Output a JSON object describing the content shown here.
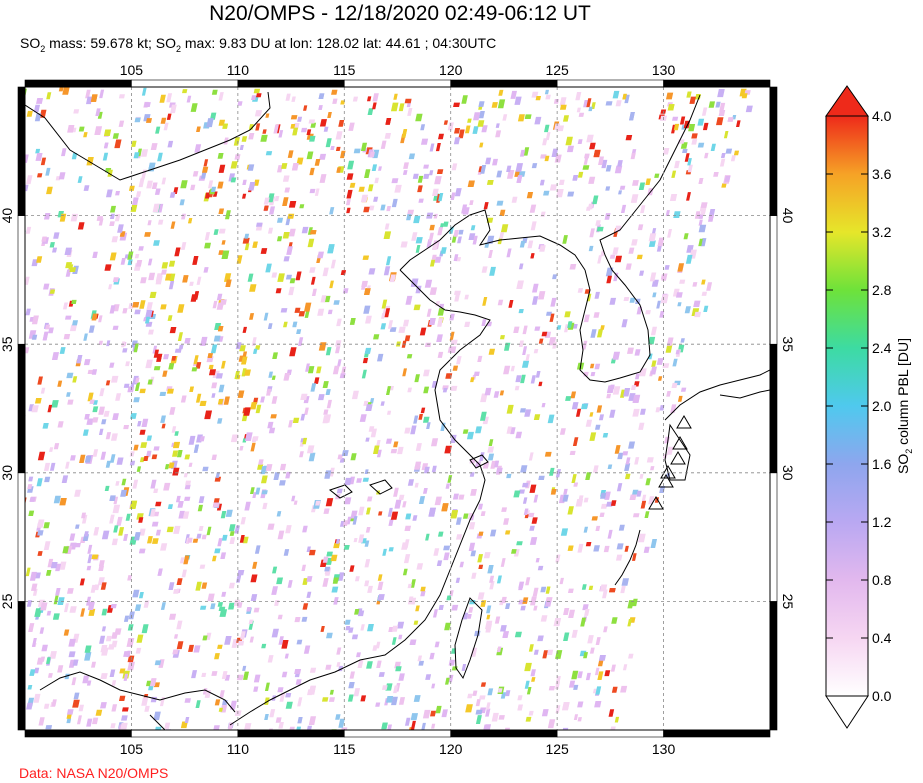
{
  "header": {
    "title": "N20/OMPS - 12/18/2020 02:49-06:12 UT",
    "mass_label": "SO",
    "mass_sub": "2",
    "mass_text": " mass: 59.678 kt; ",
    "max_label": "SO",
    "max_sub": "2",
    "max_text": " max: 9.83 DU at lon: 128.02 lat: 44.61 ; 04:30UTC"
  },
  "map": {
    "lon_ticks": [
      "105",
      "110",
      "115",
      "120",
      "125",
      "130"
    ],
    "lat_ticks": [
      "40",
      "35",
      "30",
      "25"
    ],
    "lon_range": [
      100,
      135
    ],
    "lat_range": [
      20,
      45
    ]
  },
  "colorbar": {
    "label": "SO2 column PBL [DU]",
    "label_prefix": "SO",
    "label_sub": "2",
    "label_suffix": " column PBL [DU]",
    "ticks": [
      "4.0",
      "3.6",
      "3.2",
      "2.8",
      "2.4",
      "2.0",
      "1.6",
      "1.2",
      "0.8",
      "0.4",
      "0.0"
    ],
    "range": [
      0.0,
      4.0
    ]
  },
  "credit": "Data: NASA N20/OMPS"
}
